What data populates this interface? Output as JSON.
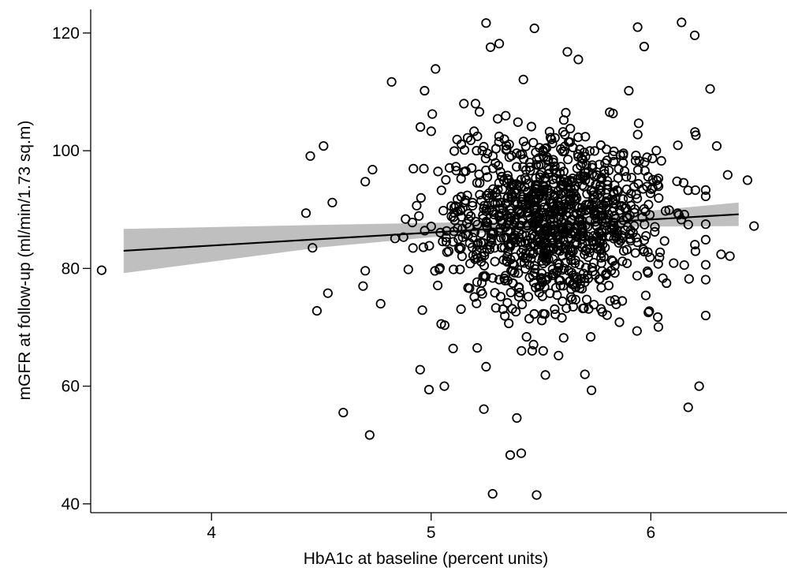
{
  "chart_data": {
    "type": "scatter",
    "xlabel": "HbA1c at baseline (percent units)",
    "ylabel": "mGFR at follow-up (ml/min/1.73 sq.m)",
    "xlim": [
      3.45,
      6.62
    ],
    "ylim": [
      38.5,
      124
    ],
    "x_ticks": [
      4,
      5,
      6
    ],
    "y_ticks": [
      40,
      60,
      80,
      100,
      120
    ],
    "grid": false,
    "legend": "none",
    "marker": "hollow-circle",
    "colors": {
      "points": "#000000",
      "fit_line": "#000000",
      "ci_band": "#bfbfbf",
      "axes": "#000000"
    },
    "fit_line": {
      "x": [
        3.6,
        6.4
      ],
      "y": [
        83.0,
        89.2
      ]
    },
    "ci_band": {
      "x": [
        3.6,
        4.5,
        5.5,
        6.4
      ],
      "lower": [
        79.2,
        83.6,
        87.0,
        87.2
      ],
      "upper": [
        86.7,
        87.4,
        88.1,
        91.2
      ]
    },
    "outlier_points": [
      {
        "x": 3.5,
        "y": 79.7
      },
      {
        "x": 4.43,
        "y": 89.4
      },
      {
        "x": 4.45,
        "y": 99.1
      },
      {
        "x": 4.46,
        "y": 83.5
      },
      {
        "x": 4.48,
        "y": 72.8
      },
      {
        "x": 4.51,
        "y": 100.8
      },
      {
        "x": 4.53,
        "y": 75.8
      },
      {
        "x": 4.55,
        "y": 91.2
      },
      {
        "x": 4.6,
        "y": 55.5
      },
      {
        "x": 4.69,
        "y": 77.0
      },
      {
        "x": 4.7,
        "y": 79.6
      },
      {
        "x": 4.72,
        "y": 51.7
      },
      {
        "x": 4.77,
        "y": 74.0
      },
      {
        "x": 4.82,
        "y": 111.7
      },
      {
        "x": 4.95,
        "y": 62.8
      },
      {
        "x": 4.97,
        "y": 110.2
      },
      {
        "x": 4.99,
        "y": 59.4
      },
      {
        "x": 5.02,
        "y": 113.9
      },
      {
        "x": 5.06,
        "y": 60.0
      },
      {
        "x": 5.22,
        "y": 106.6
      },
      {
        "x": 5.24,
        "y": 56.1
      },
      {
        "x": 5.25,
        "y": 121.7
      },
      {
        "x": 5.27,
        "y": 117.6
      },
      {
        "x": 5.28,
        "y": 41.7
      },
      {
        "x": 5.31,
        "y": 118.2
      },
      {
        "x": 5.36,
        "y": 48.3
      },
      {
        "x": 5.39,
        "y": 54.6
      },
      {
        "x": 5.41,
        "y": 48.6
      },
      {
        "x": 5.42,
        "y": 112.1
      },
      {
        "x": 5.47,
        "y": 120.8
      },
      {
        "x": 5.48,
        "y": 41.5
      },
      {
        "x": 5.58,
        "y": 65.2
      },
      {
        "x": 5.62,
        "y": 116.8
      },
      {
        "x": 5.67,
        "y": 115.5
      },
      {
        "x": 5.7,
        "y": 62.0
      },
      {
        "x": 5.73,
        "y": 59.3
      },
      {
        "x": 5.9,
        "y": 110.2
      },
      {
        "x": 5.94,
        "y": 121.0
      },
      {
        "x": 5.97,
        "y": 117.7
      },
      {
        "x": 6.14,
        "y": 121.8
      },
      {
        "x": 6.2,
        "y": 119.6
      },
      {
        "x": 6.17,
        "y": 56.4
      },
      {
        "x": 6.22,
        "y": 60.0
      },
      {
        "x": 6.25,
        "y": 72.0
      },
      {
        "x": 6.27,
        "y": 110.5
      },
      {
        "x": 6.3,
        "y": 100.8
      },
      {
        "x": 6.35,
        "y": 95.9
      },
      {
        "x": 6.44,
        "y": 95.0
      },
      {
        "x": 6.47,
        "y": 87.2
      },
      {
        "x": 6.32,
        "y": 82.4
      },
      {
        "x": 6.36,
        "y": 82.1
      },
      {
        "x": 5.52,
        "y": 61.9
      },
      {
        "x": 5.46,
        "y": 66.0
      },
      {
        "x": 5.25,
        "y": 63.3
      },
      {
        "x": 5.1,
        "y": 66.4
      },
      {
        "x": 5.21,
        "y": 66.5
      }
    ],
    "core_cloud": {
      "n": 1100,
      "x_mean": 5.55,
      "x_sd": 0.26,
      "x_range": [
        4.7,
        6.25
      ],
      "y_mean": 88.0,
      "y_sd": 7.4,
      "y_range": [
        66.0,
        108.0
      ]
    }
  }
}
